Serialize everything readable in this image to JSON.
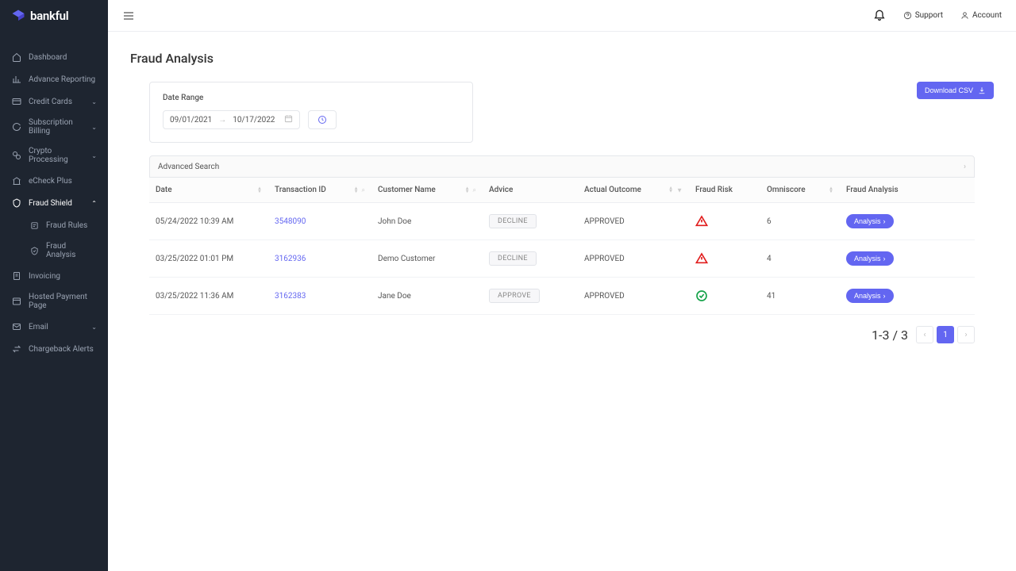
{
  "brand": {
    "name": "bankful"
  },
  "topbar": {
    "support": "Support",
    "account": "Account"
  },
  "sidebar": {
    "items": [
      {
        "key": "dashboard",
        "label": "Dashboard"
      },
      {
        "key": "advance-reporting",
        "label": "Advance Reporting"
      },
      {
        "key": "credit-cards",
        "label": "Credit Cards",
        "expandable": true
      },
      {
        "key": "subscription-billing",
        "label": "Subscription Billing",
        "expandable": true
      },
      {
        "key": "crypto-processing",
        "label": "Crypto Processing",
        "expandable": true
      },
      {
        "key": "echeck-plus",
        "label": "eCheck Plus"
      },
      {
        "key": "fraud-shield",
        "label": "Fraud Shield",
        "expandable": true,
        "expanded": true
      },
      {
        "key": "fraud-rules",
        "label": "Fraud Rules",
        "sub": true
      },
      {
        "key": "fraud-analysis",
        "label": "Fraud Analysis",
        "sub": true
      },
      {
        "key": "invoicing",
        "label": "Invoicing"
      },
      {
        "key": "hosted-payment-page",
        "label": "Hosted Payment Page"
      },
      {
        "key": "email",
        "label": "Email",
        "expandable": true
      },
      {
        "key": "chargeback-alerts",
        "label": "Chargeback Alerts"
      }
    ]
  },
  "page": {
    "title": "Fraud Analysis",
    "dateRange": {
      "label": "Date Range",
      "from": "09/01/2021",
      "to": "10/17/2022"
    },
    "downloadCsv": "Download CSV",
    "advancedSearch": "Advanced Search",
    "columns": {
      "date": "Date",
      "transactionId": "Transaction ID",
      "customerName": "Customer Name",
      "advice": "Advice",
      "actualOutcome": "Actual Outcome",
      "fraudRisk": "Fraud Risk",
      "omniscore": "Omniscore",
      "fraudAnalysis": "Fraud Analysis"
    },
    "rows": [
      {
        "date": "05/24/2022 10:39 AM",
        "txn": "3548090",
        "customer": "John Doe",
        "advice": "DECLINE",
        "outcome": "APPROVED",
        "risk": "high",
        "omniscore": "6",
        "action": "Analysis"
      },
      {
        "date": "03/25/2022 01:01 PM",
        "txn": "3162936",
        "customer": "Demo Customer",
        "advice": "DECLINE",
        "outcome": "APPROVED",
        "risk": "high",
        "omniscore": "4",
        "action": "Analysis"
      },
      {
        "date": "03/25/2022 11:36 AM",
        "txn": "3162383",
        "customer": "Jane Doe",
        "advice": "APPROVE",
        "outcome": "APPROVED",
        "risk": "low",
        "omniscore": "41",
        "action": "Analysis"
      }
    ],
    "pagination": {
      "summary": "1-3 / 3",
      "current": "1"
    }
  },
  "colors": {
    "accent": "#6366f1",
    "sidebarBg": "#1e2530",
    "danger": "#e11d1d",
    "success": "#16a34a"
  }
}
